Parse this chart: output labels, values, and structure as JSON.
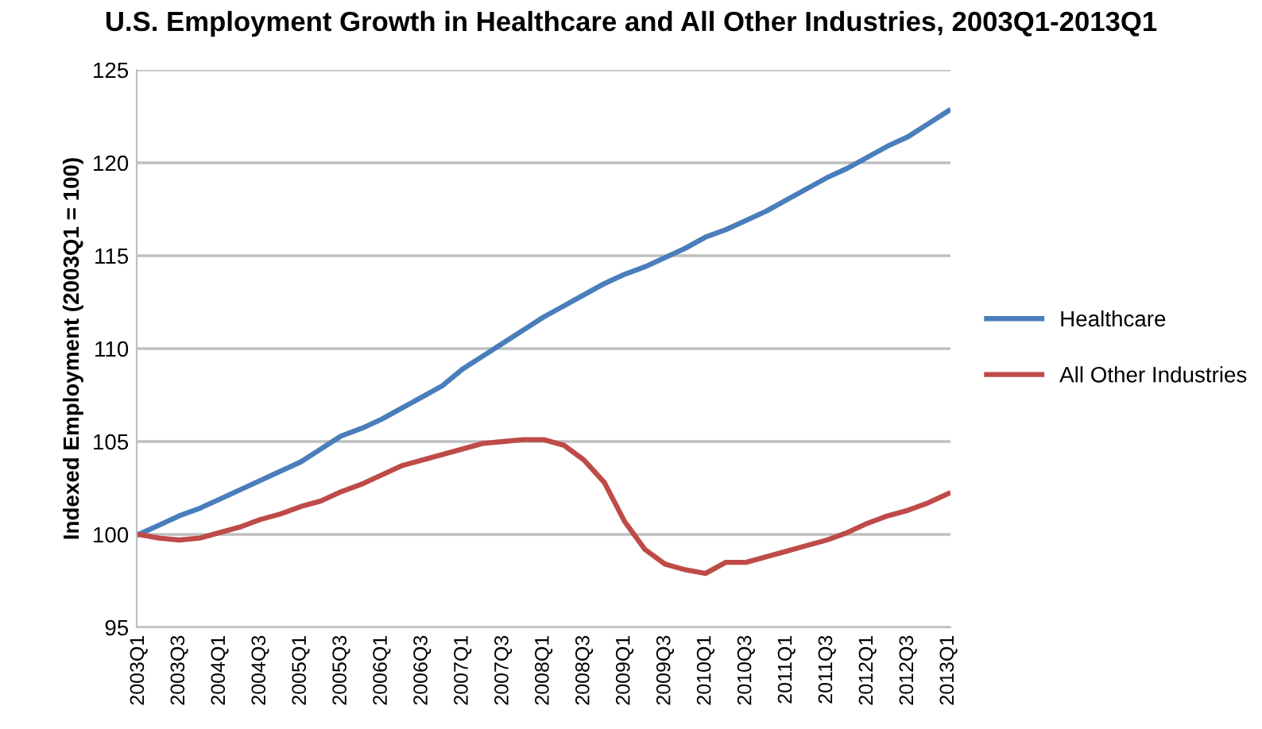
{
  "chart_data": {
    "type": "line",
    "title": "U.S. Employment Growth in Healthcare and All Other Industries, 2003Q1-2013Q1",
    "ylabel": "Indexed Employment (2003Q1 = 100)",
    "categories": [
      "2003Q1",
      null,
      "2003Q3",
      null,
      "2004Q1",
      null,
      "2004Q3",
      null,
      "2005Q1",
      null,
      "2005Q3",
      null,
      "2006Q1",
      null,
      "2006Q3",
      null,
      "2007Q1",
      null,
      "2007Q3",
      null,
      "2008Q1",
      null,
      "2008Q3",
      null,
      "2009Q1",
      null,
      "2009Q3",
      null,
      "2010Q1",
      null,
      "2010Q3",
      null,
      "2011Q1",
      null,
      "2011Q3",
      null,
      "2012Q1",
      null,
      "2012Q3",
      null,
      "2013Q1"
    ],
    "series": [
      {
        "name": "Healthcare",
        "color": "#4a7ebb",
        "values": [
          100.0,
          100.5,
          101.0,
          101.4,
          101.9,
          102.4,
          102.9,
          103.4,
          103.9,
          104.6,
          105.3,
          105.7,
          106.2,
          106.8,
          107.4,
          108.0,
          108.9,
          109.6,
          110.3,
          111.0,
          111.7,
          112.3,
          112.9,
          113.5,
          114.0,
          114.4,
          114.9,
          115.4,
          116.0,
          116.4,
          116.9,
          117.4,
          118.0,
          118.6,
          119.2,
          119.7,
          120.3,
          120.9,
          121.4,
          122.1,
          122.8
        ]
      },
      {
        "name": "All Other Industries",
        "color": "#be4b48",
        "values": [
          100.0,
          99.8,
          99.7,
          99.8,
          100.1,
          100.4,
          100.8,
          101.1,
          101.5,
          101.8,
          102.3,
          102.7,
          103.2,
          103.7,
          104.0,
          104.3,
          104.6,
          104.9,
          105.0,
          105.1,
          105.1,
          104.8,
          104.0,
          102.8,
          100.7,
          99.2,
          98.4,
          98.1,
          97.9,
          98.5,
          98.5,
          98.8,
          99.1,
          99.4,
          99.7,
          100.1,
          100.6,
          101.0,
          101.3,
          101.7,
          102.2
        ]
      }
    ],
    "ylim": [
      95,
      125
    ],
    "yticks": [
      95,
      100,
      105,
      110,
      115,
      120,
      125
    ],
    "grid": "y",
    "legend": "right",
    "marker": "none",
    "line_style": "solid"
  }
}
